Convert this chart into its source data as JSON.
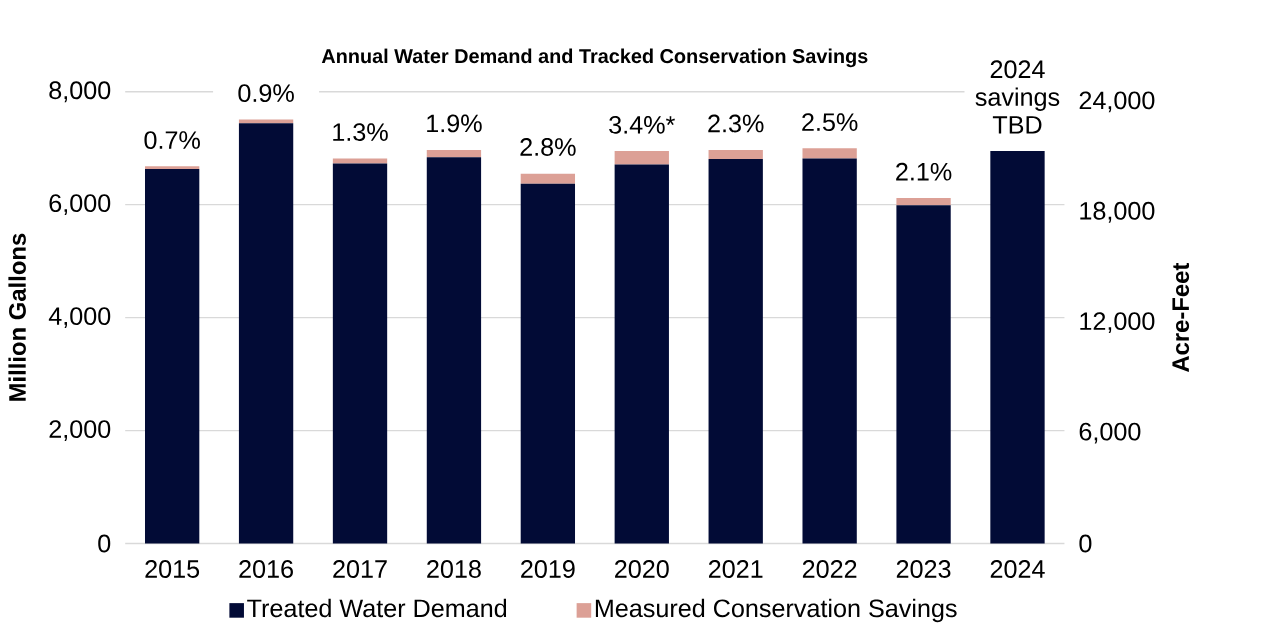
{
  "chart_data": {
    "type": "bar",
    "title": "Annual Water Demand and Tracked Conservation Savings",
    "categories": [
      "2015",
      "2016",
      "2017",
      "2018",
      "2019",
      "2020",
      "2021",
      "2022",
      "2023",
      "2024"
    ],
    "stacked": true,
    "series": [
      {
        "name": "Treated Water Demand",
        "color": "#020b36",
        "values": [
          6630,
          7440,
          6730,
          6840,
          6370,
          6710,
          6810,
          6820,
          5990,
          6950
        ]
      },
      {
        "name": "Measured Conservation Savings",
        "color": "#dca096",
        "values": [
          50,
          70,
          90,
          130,
          180,
          240,
          160,
          180,
          130,
          null
        ]
      }
    ],
    "annotations": [
      {
        "text": "0.7%",
        "x": "2015",
        "y": 6677
      },
      {
        "text": "0.9%",
        "x": "2016",
        "y": 7508
      },
      {
        "text": "1.3%",
        "x": "2017",
        "y": 6818
      },
      {
        "text": "1.9%",
        "x": "2018",
        "y": 6972
      },
      {
        "text": "2.8%",
        "x": "2019",
        "y": 6554
      },
      {
        "text": "3.4%*",
        "x": "2020",
        "y": 6946
      },
      {
        "text": "2.3%",
        "x": "2021",
        "y": 6970
      },
      {
        "text": "2.5%",
        "x": "2022",
        "y": 6995
      },
      {
        "text": "2.1%",
        "x": "2023",
        "y": 6118
      },
      {
        "text": "2024 savings TBD",
        "x": "2024",
        "y": 6950
      }
    ],
    "ylabel": "Million Gallons",
    "y2label": "Acre-Feet",
    "ylim": [
      0,
      8000
    ],
    "yticks": [
      0,
      {
        "value": 2000,
        "label": "2,000"
      },
      {
        "value": 4000,
        "label": "4,000"
      },
      {
        "value": 6000,
        "label": "6,000"
      },
      {
        "value": 8000,
        "label": "8,000"
      }
    ],
    "y2lim": [
      0,
      24550
    ],
    "y2ticks": [
      0,
      {
        "value": 6000,
        "label": "6,000"
      },
      {
        "value": 12000,
        "label": "12,000"
      },
      {
        "value": 18000,
        "label": "18,000"
      },
      {
        "value": 24000,
        "label": "24,000"
      }
    ],
    "grid": "y",
    "legend": "bottom"
  }
}
